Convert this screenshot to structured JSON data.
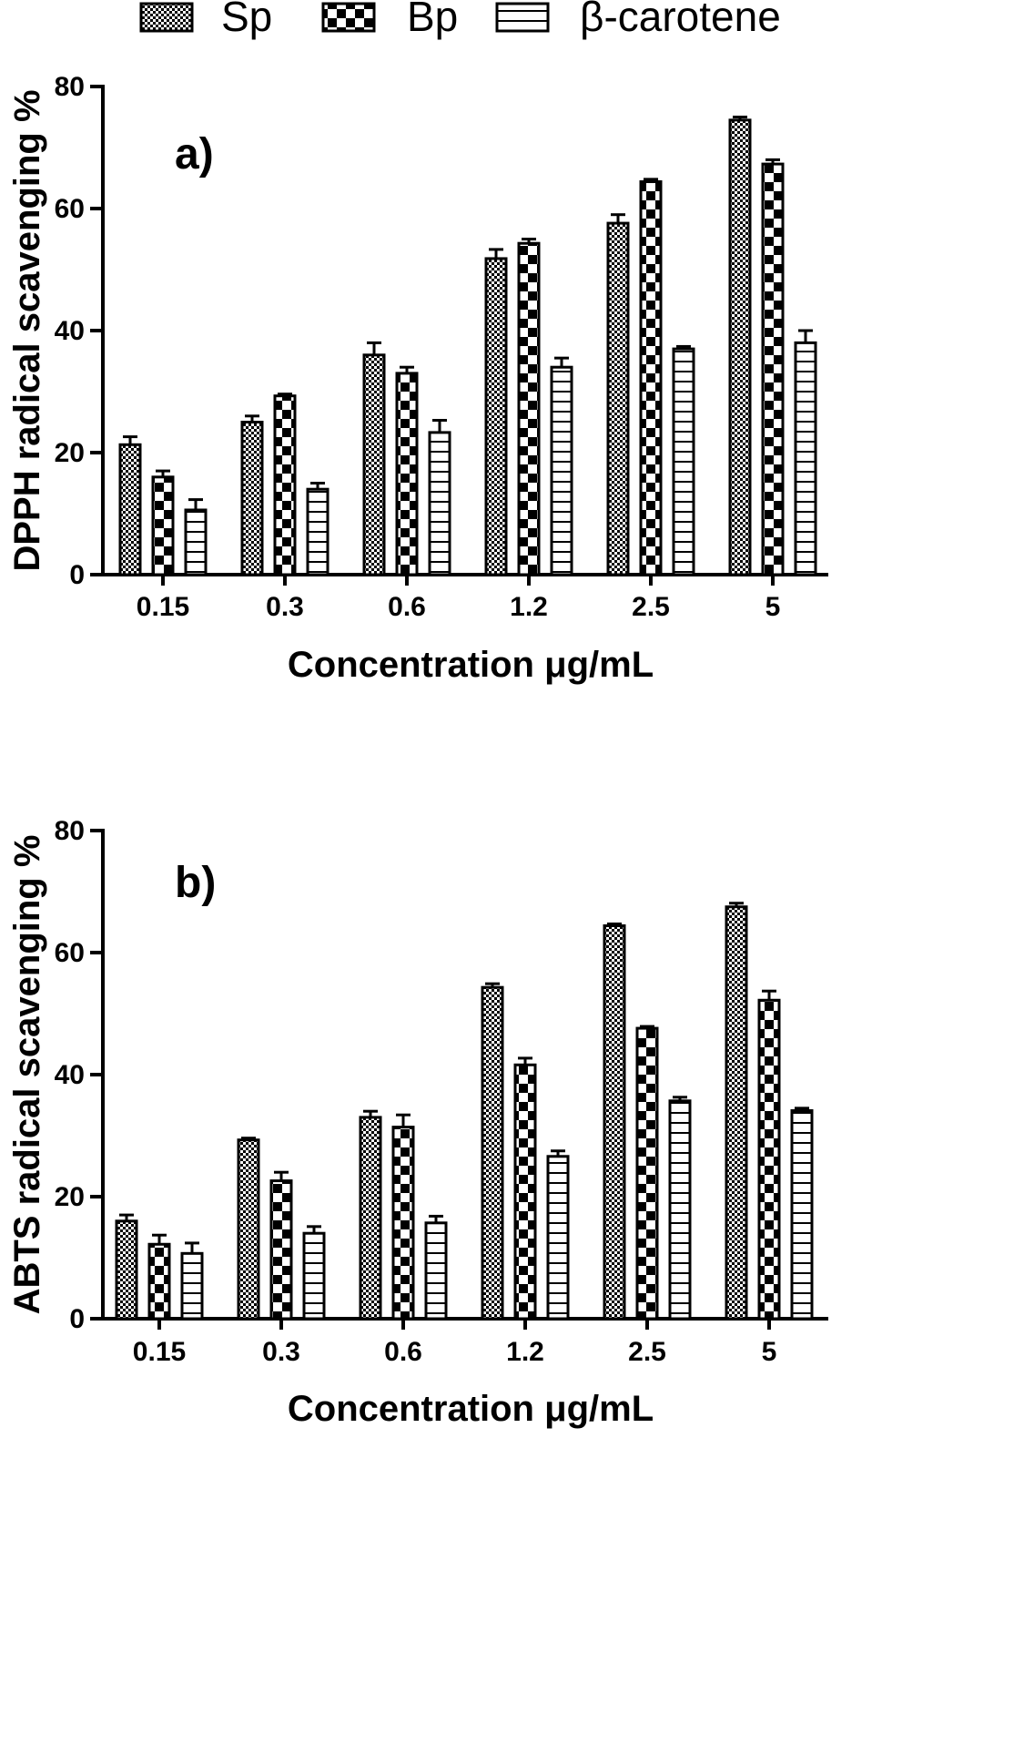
{
  "legend": [
    {
      "name": "Sp",
      "pattern": "dots"
    },
    {
      "name": "Bp",
      "pattern": "checker"
    },
    {
      "name": "β-carotene",
      "pattern": "hlines"
    }
  ],
  "chart_data": [
    {
      "type": "bar",
      "panel_label": "a)",
      "categories": [
        "0.15",
        "0.3",
        "0.6",
        "1.2",
        "2.5",
        "5"
      ],
      "series": [
        {
          "name": "Sp",
          "values": [
            21.3,
            25.0,
            36.0,
            51.8,
            57.6,
            74.5
          ],
          "errors": [
            1.3,
            1.0,
            2.0,
            1.5,
            1.4,
            0.5
          ]
        },
        {
          "name": "Bp",
          "values": [
            16.0,
            29.3,
            33.0,
            54.3,
            64.4,
            67.3
          ],
          "errors": [
            1.0,
            0.3,
            1.0,
            0.7,
            0.4,
            0.7
          ]
        },
        {
          "name": "β-carotene",
          "values": [
            10.6,
            14.0,
            23.3,
            34.0,
            37.0,
            38.0
          ],
          "errors": [
            1.7,
            1.0,
            2.0,
            1.5,
            0.4,
            2.0
          ]
        }
      ],
      "xlabel": "Concentration μg/mL",
      "ylabel": "DPPH radical scavenging %",
      "ylim": [
        0,
        80
      ],
      "yticks": [
        "0",
        "20",
        "40",
        "60",
        "80"
      ],
      "grid": false
    },
    {
      "type": "bar",
      "panel_label": "b)",
      "categories": [
        "0.15",
        "0.3",
        "0.6",
        "1.2",
        "2.5",
        "5"
      ],
      "series": [
        {
          "name": "Sp",
          "values": [
            16.0,
            29.3,
            33.0,
            54.3,
            64.4,
            67.5
          ],
          "errors": [
            1.0,
            0.3,
            1.0,
            0.6,
            0.3,
            0.6
          ]
        },
        {
          "name": "Bp",
          "values": [
            12.2,
            22.6,
            31.4,
            41.6,
            47.6,
            52.2
          ],
          "errors": [
            1.5,
            1.4,
            2.0,
            1.1,
            0.3,
            1.5
          ]
        },
        {
          "name": "β-carotene",
          "values": [
            10.7,
            14.0,
            15.7,
            26.6,
            35.7,
            34.1
          ],
          "errors": [
            1.7,
            1.1,
            1.1,
            0.9,
            0.6,
            0.4
          ]
        }
      ],
      "xlabel": "Concentration μg/mL",
      "ylabel": "ABTS radical scavenging %",
      "ylim": [
        0,
        80
      ],
      "yticks": [
        "0",
        "20",
        "40",
        "60",
        "80"
      ],
      "grid": false
    }
  ]
}
